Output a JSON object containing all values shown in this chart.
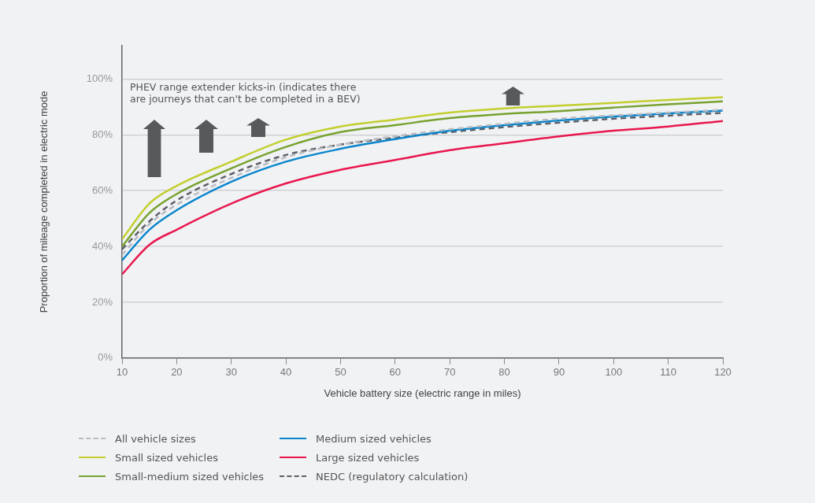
{
  "chart_data": {
    "type": "line",
    "xlabel": "Vehicle battery size (electric range in miles)",
    "ylabel": "Proportion of mileage completed in electric mode",
    "x": [
      10,
      15,
      20,
      30,
      40,
      50,
      60,
      70,
      80,
      90,
      100,
      110,
      120
    ],
    "xlim": [
      10,
      120
    ],
    "xticks": [
      10,
      20,
      30,
      40,
      50,
      60,
      70,
      80,
      90,
      100,
      110,
      120
    ],
    "ylim": [
      0,
      112
    ],
    "yticks": [
      {
        "value": 0,
        "label": "0%"
      },
      {
        "value": 20,
        "label": "20%"
      },
      {
        "value": 40,
        "label": "40%"
      },
      {
        "value": 60,
        "label": "60%"
      },
      {
        "value": 80,
        "label": "80%"
      },
      {
        "value": 100,
        "label": "100%"
      }
    ],
    "grid": "y",
    "legend": "bottom",
    "marker": "none",
    "annotations": [
      "PHEV range extender kicks-in (indicates there are journeys that can't be completed in a BEV)"
    ],
    "series": [
      {
        "name": "All vehicle sizes",
        "color": "#b8bcc2",
        "line_style": "dashed",
        "values": [
          37,
          48,
          55,
          64.6,
          72,
          76.5,
          79.5,
          82,
          84,
          85.8,
          87,
          88,
          89
        ]
      },
      {
        "name": "Small sized vehicles",
        "color": "#c2cf2e",
        "line_style": "solid",
        "values": [
          42.6,
          55.4,
          61.7,
          70.4,
          78.3,
          83,
          85.5,
          88,
          89.5,
          90.5,
          91.5,
          92.5,
          93.5
        ]
      },
      {
        "name": "Small-medium sized vehicles",
        "color": "#77a22f",
        "line_style": "solid",
        "values": [
          40,
          52,
          58.8,
          68,
          75.7,
          81,
          83.5,
          86,
          87.5,
          88.5,
          89.8,
          91,
          92
        ]
      },
      {
        "name": "Medium sized vehicles",
        "color": "#0a85cc",
        "line_style": "solid",
        "values": [
          35,
          46,
          53,
          63.2,
          70.4,
          75,
          78.5,
          81.5,
          83.5,
          85.2,
          86.6,
          87.7,
          88.7
        ]
      },
      {
        "name": "Large sized vehicles",
        "color": "#e8174f",
        "line_style": "solid",
        "values": [
          30,
          40.6,
          46,
          55.4,
          62.6,
          67.5,
          71,
          74.5,
          77,
          79.5,
          81.5,
          83,
          85
        ]
      },
      {
        "name": "NEDC (regulatory calculation)",
        "color": "#5d6068",
        "line_style": "dashed",
        "values": [
          39,
          49,
          56.5,
          66,
          72.8,
          76.5,
          79,
          81,
          82.8,
          84.4,
          85.8,
          86.9,
          87.9
        ]
      }
    ]
  }
}
